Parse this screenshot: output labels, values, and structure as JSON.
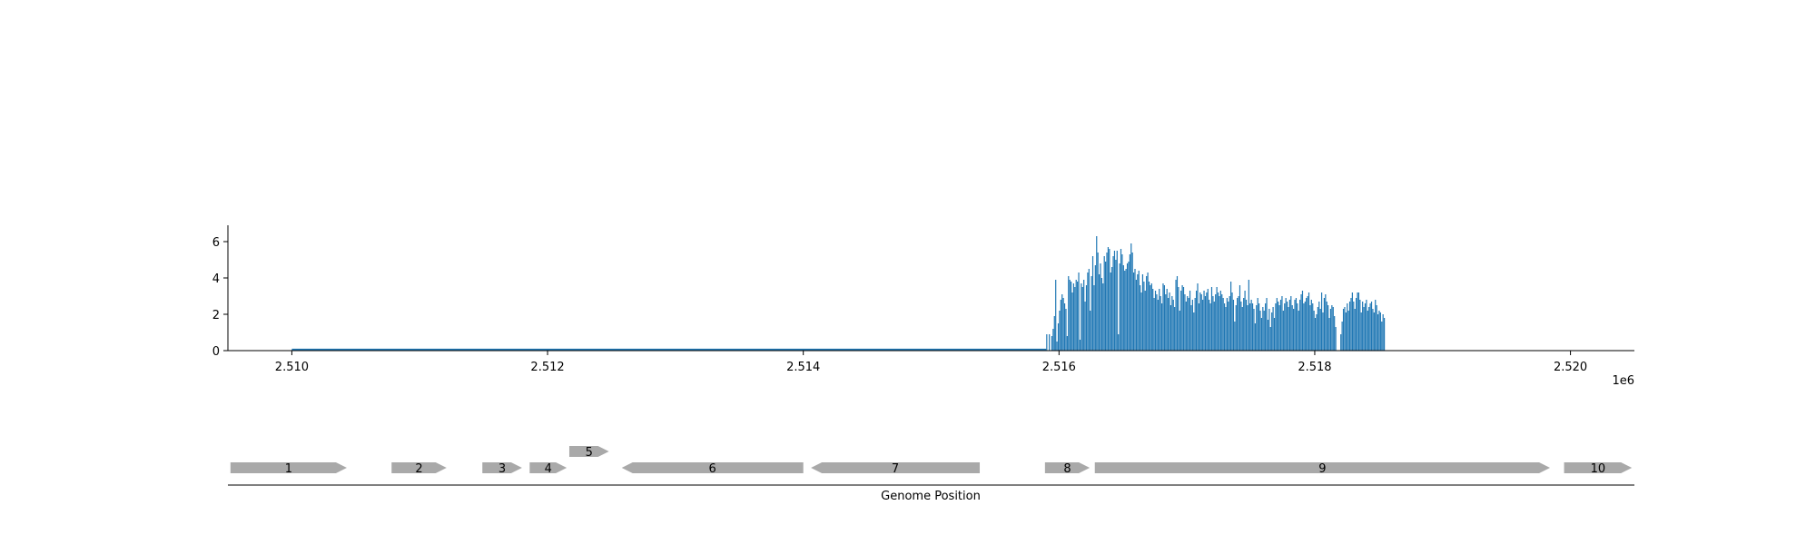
{
  "chart_data": [
    {
      "type": "bar",
      "title": "",
      "xlabel": "",
      "ylabel": "",
      "xlim": [
        2509500,
        2520500
      ],
      "ylim": [
        0,
        6.9
      ],
      "x_offset_label": "1e6",
      "x_ticks": [
        2510000,
        2512000,
        2514000,
        2516000,
        2518000,
        2520000
      ],
      "x_tick_labels": [
        "2.510",
        "2.512",
        "2.514",
        "2.516",
        "2.518",
        "2.520"
      ],
      "y_ticks": [
        0,
        2,
        4,
        6
      ],
      "y_tick_labels": [
        "0",
        "2",
        "4",
        "6"
      ],
      "bar_color": "#1f77b4",
      "baseline_segment": [
        2510000,
        2515900
      ],
      "series": [
        {
          "x_start": 2515900,
          "x_step": 10,
          "values": [
            0.9,
            0,
            0.9,
            0,
            0.8,
            1.2,
            1.9,
            3.9,
            0.5,
            1.5,
            2.2,
            2.8,
            3.1,
            2.9,
            2.6,
            2.3,
            0.8,
            4.1,
            3.9,
            3.8,
            3.2,
            3.7,
            3.5,
            3.9,
            3.8,
            4.3,
            0.6,
            3.7,
            3.5,
            3.9,
            2.7,
            3.6,
            4.3,
            4.5,
            2.2,
            4.1,
            5.2,
            3.6,
            4.7,
            6.3,
            5.4,
            4.2,
            4.8,
            4.0,
            3.7,
            5.2,
            4.9,
            5.4,
            5.7,
            5.6,
            4.3,
            4.6,
            5.2,
            5.5,
            5.0,
            5.5,
            0.9,
            4.8,
            5.6,
            5.3,
            4.7,
            4.4,
            4.5,
            4.8,
            4.9,
            5.3,
            5.9,
            5.4,
            4.3,
            4.5,
            3.9,
            4.2,
            4.4,
            3.6,
            3.2,
            4.2,
            3.8,
            3.3,
            4.1,
            4.3,
            3.8,
            3.6,
            3.7,
            3.4,
            2.9,
            3.3,
            3.1,
            2.8,
            3.4,
            3.0,
            2.6,
            3.7,
            3.6,
            3.1,
            3.4,
            2.9,
            3.2,
            2.5,
            3.0,
            2.8,
            2.4,
            3.9,
            4.1,
            3.5,
            2.2,
            3.3,
            3.6,
            3.5,
            3.1,
            2.7,
            3.0,
            2.9,
            3.3,
            2.5,
            2.8,
            2.1,
            2.9,
            3.3,
            3.7,
            2.6,
            3.2,
            3.1,
            2.8,
            3.3,
            3.0,
            3.2,
            3.4,
            2.8,
            2.6,
            3.5,
            3.0,
            2.7,
            3.1,
            3.5,
            3.2,
            3.0,
            3.3,
            3.1,
            2.9,
            2.6,
            2.4,
            2.9,
            2.7,
            3.0,
            3.8,
            3.2,
            2.8,
            1.6,
            2.5,
            2.9,
            3.0,
            3.6,
            2.7,
            2.4,
            2.9,
            3.3,
            2.8,
            2.5,
            3.9,
            2.6,
            2.8,
            2.6,
            2.3,
            1.5,
            2.5,
            2.9,
            2.6,
            2.2,
            1.8,
            2.4,
            2.2,
            2.6,
            2.9,
            1.7,
            2.3,
            1.3,
            2.1,
            2.4,
            1.8,
            2.6,
            2.9,
            2.7,
            2.5,
            2.8,
            3.0,
            2.2,
            2.6,
            2.9,
            2.7,
            2.4,
            2.8,
            3.0,
            2.5,
            2.3,
            2.8,
            2.9,
            2.6,
            2.2,
            2.8,
            3.1,
            3.3,
            2.6,
            2.7,
            2.9,
            3.0,
            3.2,
            2.5,
            2.8,
            2.6,
            2.2,
            1.8,
            2.0,
            2.4,
            2.7,
            2.3,
            3.2,
            2.1,
            2.9,
            3.1,
            2.7,
            2.5,
            1.8,
            2.3,
            2.5,
            2.4,
            1.9,
            1.3,
            0,
            0,
            0,
            0.9,
            1.6,
            2.3,
            2.4,
            2.1,
            2.6,
            2.2,
            2.7,
            2.9,
            3.2,
            2.7,
            2.3,
            2.9,
            3.2,
            3.2,
            2.8,
            2.1,
            2.7,
            2.4,
            2.6,
            2.8,
            2.2,
            2.4,
            2.6,
            2.7,
            2.3,
            2.1,
            2.8,
            2.5,
            2.0,
            2.2,
            2.1,
            1.6,
            2.0,
            1.8
          ]
        }
      ]
    },
    {
      "type": "gene_map",
      "xlabel": "Genome Position",
      "feature_color": "#a9a9a9",
      "features": [
        {
          "label": "1",
          "start": 2509520,
          "end": 2510430,
          "strand": "+",
          "row": 0
        },
        {
          "label": "2",
          "start": 2510780,
          "end": 2511210,
          "strand": "+",
          "row": 0
        },
        {
          "label": "3",
          "start": 2511490,
          "end": 2511800,
          "strand": "+",
          "row": 0
        },
        {
          "label": "4",
          "start": 2511860,
          "end": 2512150,
          "strand": "+",
          "row": 0
        },
        {
          "label": "5",
          "start": 2512170,
          "end": 2512480,
          "strand": "+",
          "row": 1
        },
        {
          "label": "6",
          "start": 2512580,
          "end": 2514000,
          "strand": "-",
          "row": 0
        },
        {
          "label": "7",
          "start": 2514060,
          "end": 2515380,
          "strand": "-",
          "row": 0
        },
        {
          "label": "8",
          "start": 2515890,
          "end": 2516240,
          "strand": "+",
          "row": 0
        },
        {
          "label": "9",
          "start": 2516280,
          "end": 2519840,
          "strand": "+",
          "row": 0
        },
        {
          "label": "10",
          "start": 2519950,
          "end": 2520480,
          "strand": "+",
          "row": 0
        }
      ]
    }
  ]
}
